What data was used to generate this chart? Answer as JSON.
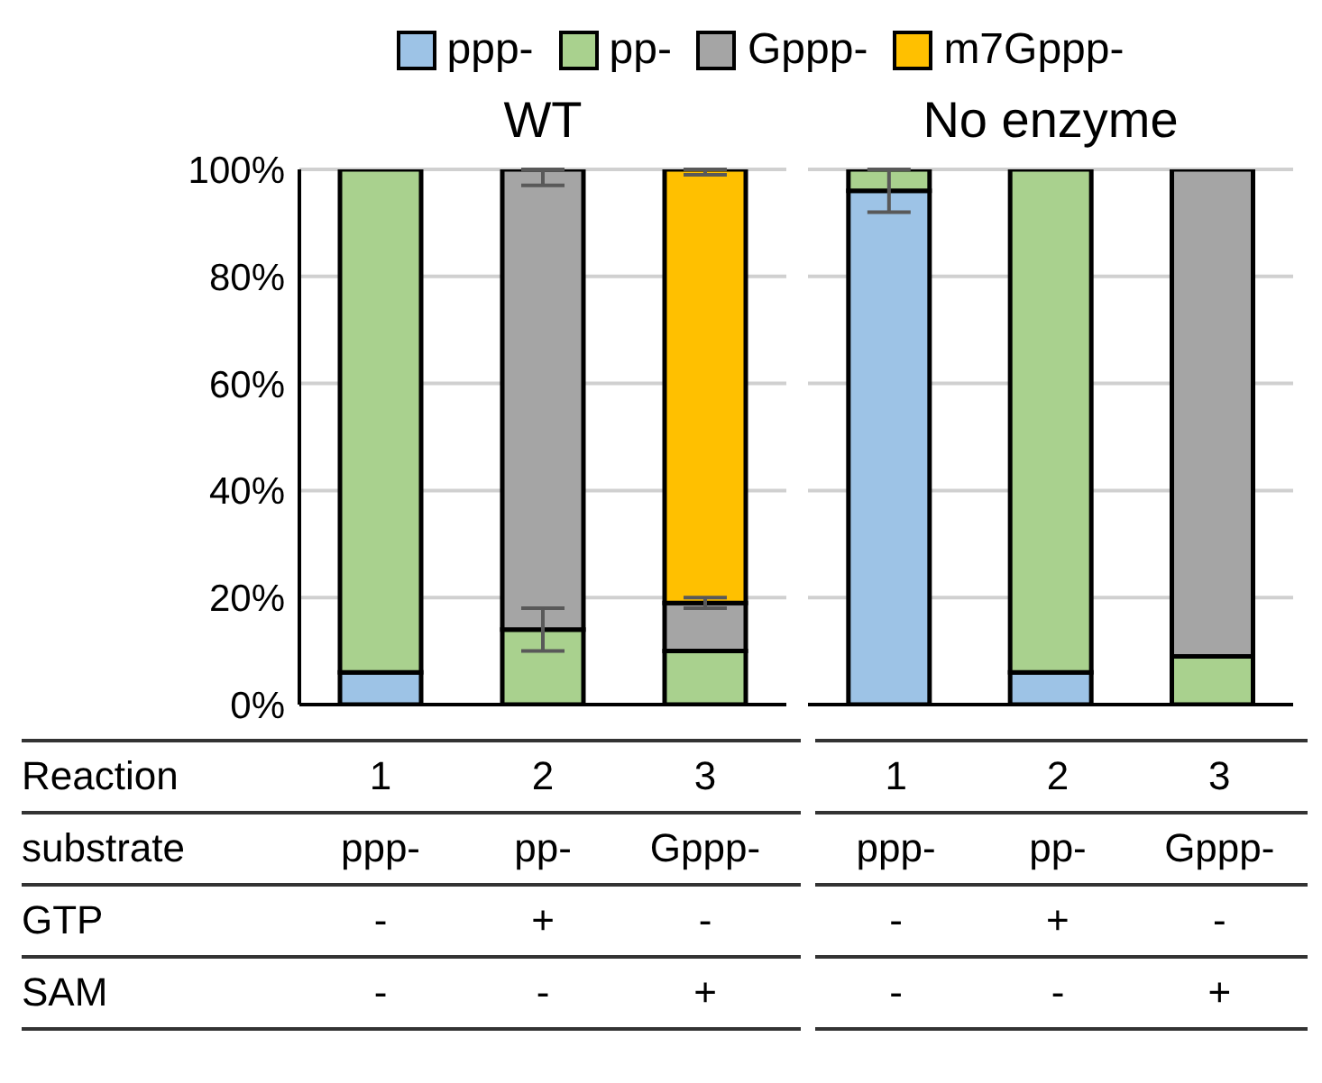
{
  "chart_data": [
    {
      "type": "bar",
      "title": "WT",
      "stacked": true,
      "legend": "top",
      "grid": "y",
      "xlabel": "Reaction",
      "categories": [
        "1",
        "2",
        "3"
      ],
      "annotations": [
        "substrate",
        "ppp-",
        "pp-",
        "Gppp-",
        "GTP",
        "-",
        "+",
        "-",
        "SAM",
        "-",
        "-",
        "+"
      ],
      "ylim": [
        0,
        100
      ],
      "yticks": [
        {
          "value": 0,
          "label": "0%"
        },
        {
          "value": 20,
          "label": "20%"
        },
        {
          "value": 40,
          "label": "40%"
        },
        {
          "value": 60,
          "label": "60%"
        },
        {
          "value": 80,
          "label": "80%"
        },
        {
          "value": 100,
          "label": "100%"
        }
      ],
      "series": [
        {
          "name": "ppp-",
          "color": "#9dc3e6",
          "values": [
            6,
            0,
            0
          ]
        },
        {
          "name": "pp-",
          "color": "#a9d18e",
          "values": [
            94,
            14,
            10
          ],
          "errors": [
            null,
            4,
            null
          ]
        },
        {
          "name": "Gppp-",
          "color": "#a5a5a5",
          "values": [
            0,
            86,
            9
          ],
          "errors": [
            null,
            [
              97,
              100
            ],
            1
          ]
        },
        {
          "name": "m7Gppp-",
          "color": "#ffc000",
          "values": [
            0,
            0,
            81
          ],
          "errors": [
            null,
            null,
            [
              99,
              100
            ]
          ]
        }
      ]
    },
    {
      "type": "bar",
      "title": "No enzyme",
      "stacked": true,
      "grid": "y",
      "tick_labels": "x",
      "categories": [
        "1",
        "2",
        "3"
      ],
      "annotations": [
        "ppp-",
        "pp-",
        "Gppp-",
        "-",
        "+",
        "-",
        "-",
        "-",
        "+"
      ],
      "ylim": [
        0,
        100
      ],
      "yticks": [
        0,
        20,
        40,
        60,
        80,
        100
      ],
      "series": [
        {
          "color": "#9dc3e6",
          "values": [
            96,
            6,
            0
          ],
          "errors": [
            4,
            null,
            null
          ]
        },
        {
          "color": "#a9d18e",
          "values": [
            4,
            94,
            9
          ]
        },
        {
          "color": "#a5a5a5",
          "values": [
            0,
            0,
            91
          ]
        }
      ]
    }
  ]
}
